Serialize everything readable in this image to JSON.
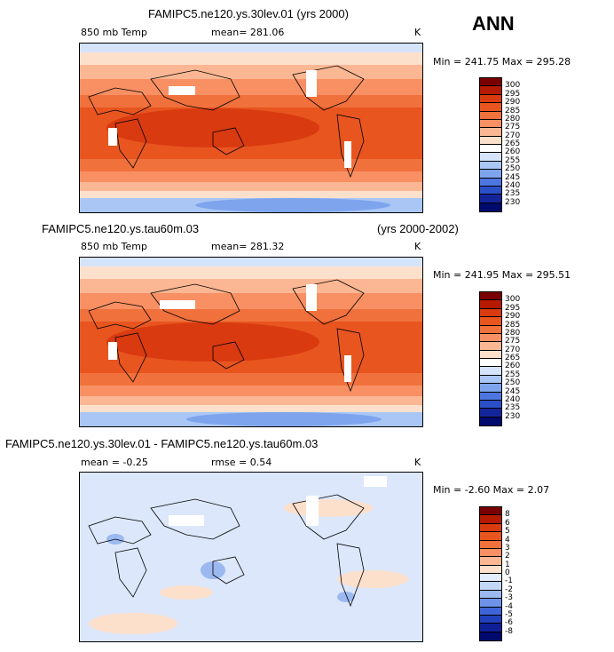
{
  "page_title": "ANN",
  "panels": [
    {
      "title": "FAMIPC5.ne120.ys.30lev.01 (yrs 2000)",
      "title_right": "",
      "variable": "850 mb Temp",
      "stat": "mean= 281.06",
      "units": "K",
      "minmax": "Min = 241.75 Max = 295.28",
      "colorbar": {
        "labels": [
          "300",
          "295",
          "290",
          "285",
          "280",
          "275",
          "270",
          "265",
          "260",
          "255",
          "250",
          "245",
          "240",
          "235",
          "230"
        ],
        "colors": [
          "#7a0000",
          "#b51a00",
          "#d93a10",
          "#e8551f",
          "#f0713c",
          "#f89063",
          "#fbb793",
          "#fde0cc",
          "#ffffff",
          "#d6e4fb",
          "#aac6f5",
          "#7ea4ee",
          "#4e76e0",
          "#2b4fc8",
          "#14259c",
          "#000a6e"
        ]
      }
    },
    {
      "title": "FAMIPC5.ne120.ys.tau60m.03",
      "title_right": "(yrs 2000-2002)",
      "variable": "850 mb Temp",
      "stat": "mean= 281.32",
      "units": "K",
      "minmax": "Min = 241.95 Max = 295.51",
      "colorbar": {
        "labels": [
          "300",
          "295",
          "290",
          "285",
          "280",
          "275",
          "270",
          "265",
          "260",
          "255",
          "250",
          "245",
          "240",
          "235",
          "230"
        ],
        "colors": [
          "#7a0000",
          "#b51a00",
          "#d93a10",
          "#e8551f",
          "#f0713c",
          "#f89063",
          "#fbb793",
          "#fde0cc",
          "#ffffff",
          "#d6e4fb",
          "#aac6f5",
          "#7ea4ee",
          "#4e76e0",
          "#2b4fc8",
          "#14259c",
          "#000a6e"
        ]
      }
    },
    {
      "title": "FAMIPC5.ne120.ys.30lev.01 - FAMIPC5.ne120.ys.tau60m.03",
      "title_right": "",
      "variable": "mean =   -0.25",
      "stat": "rmse =    0.54",
      "units": "K",
      "minmax": "Min =   -2.60 Max =    2.07",
      "colorbar": {
        "labels": [
          "8",
          "6",
          "5",
          "4",
          "3",
          "2",
          "1",
          "0",
          "-1",
          "-2",
          "-3",
          "-4",
          "-5",
          "-6",
          "-8"
        ],
        "colors": [
          "#7a0000",
          "#b51a00",
          "#d93a10",
          "#e8551f",
          "#f0713c",
          "#f89063",
          "#fbb793",
          "#fde0cc",
          "#e3ecfb",
          "#c4d7f6",
          "#9bb9f0",
          "#6f93e8",
          "#3f64d8",
          "#2140bc",
          "#0f1f98",
          "#000a6e"
        ]
      }
    }
  ],
  "map_palette": {
    "bg_warm": "#e8551f",
    "band_290": "#d93a10",
    "band_280": "#f0713c",
    "band_275": "#f89063",
    "band_270": "#fbb793",
    "band_265": "#fde0cc",
    "cold_260": "#d6e4fb",
    "cold_255": "#aac6f5",
    "cold_250": "#7ea4ee",
    "missing": "#ffffff",
    "diff_bg": "#dce7fb",
    "diff_pos": "#fde0cc",
    "diff_neg": "#9bb9f0",
    "coast": "#000000"
  }
}
